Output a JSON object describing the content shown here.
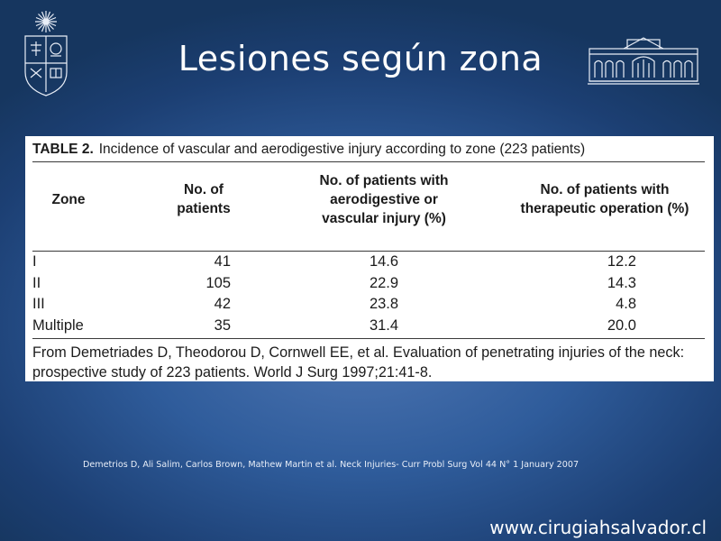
{
  "slide": {
    "title": "Lesiones según zona",
    "citation": "Demetrios D, Ali Salim, Carlos Brown, Mathew Martin et al. Neck Injuries- Curr Probl Surg Vol 44 N° 1 January 2007",
    "website": "www.cirugiahsalvador.cl"
  },
  "logos": {
    "left": "university-crest-icon",
    "right": "hospital-building-icon"
  },
  "table": {
    "label": "TABLE 2.",
    "caption": "Incidence of vascular and aerodigestive injury according to zone (223 patients)",
    "headers": [
      {
        "lines": [
          "Zone"
        ]
      },
      {
        "lines": [
          "No. of",
          "patients"
        ]
      },
      {
        "lines": [
          "No. of patients with",
          "aerodigestive or",
          "vascular injury (%)"
        ]
      },
      {
        "lines": [
          "No. of patients with",
          "therapeutic operation (%)"
        ]
      }
    ],
    "rows": [
      {
        "zone": "I",
        "patients": "41",
        "injury": "14.6",
        "therapeutic": "12.2"
      },
      {
        "zone": "II",
        "patients": "105",
        "injury": "22.9",
        "therapeutic": "14.3"
      },
      {
        "zone": "III",
        "patients": "42",
        "injury": "23.8",
        "therapeutic": "4.8"
      },
      {
        "zone": "Multiple",
        "patients": "35",
        "injury": "31.4",
        "therapeutic": "20.0"
      }
    ],
    "source": "From Demetriades D, Theodorou D, Cornwell EE, et al. Evaluation of penetrating injuries of the neck: prospective study of 223 patients. World J Surg 1997;21:41-8."
  },
  "colors": {
    "background": "#2f5c9b",
    "title_text": "#ffffff",
    "panel": "#ffffff"
  }
}
